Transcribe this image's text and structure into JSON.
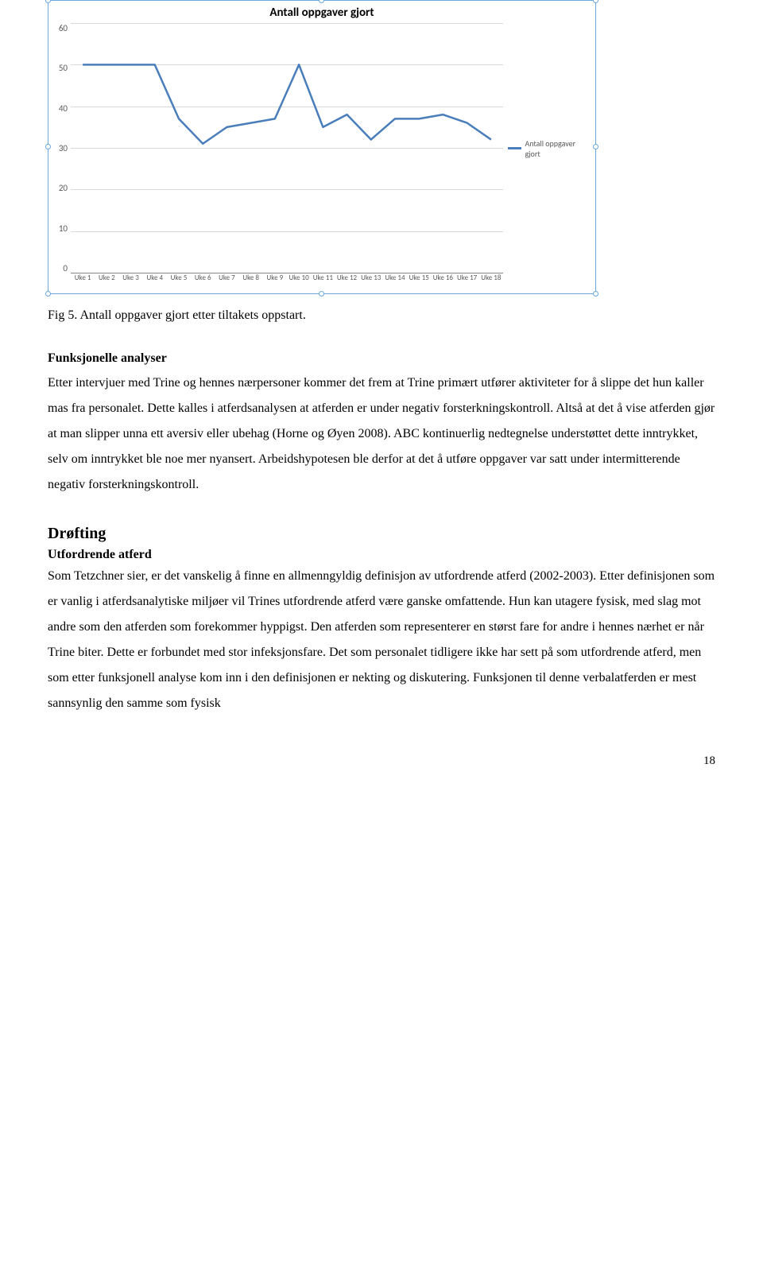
{
  "chart": {
    "type": "line",
    "title": "Antall oppgaver gjort",
    "title_fontsize": 15,
    "title_fontweight": "bold",
    "title_fontfamily": "Calibri",
    "categories": [
      "Uke 1",
      "Uke 2",
      "Uke 3",
      "Uke 4",
      "Uke 5",
      "Uke 6",
      "Uke 7",
      "Uke 8",
      "Uke 9",
      "Uke 10",
      "Uke 11",
      "Uke 12",
      "Uke 13",
      "Uke 14",
      "Uke 15",
      "Uke 16",
      "Uke 17",
      "Uke 18"
    ],
    "values": [
      50,
      50,
      50,
      50,
      37,
      31,
      35,
      36,
      37,
      50,
      35,
      38,
      32,
      37,
      37,
      38,
      36,
      32
    ],
    "line_color": "#4a7ebb",
    "line_width": 2.5,
    "background_color": "#ffffff",
    "border_color": "#6aa8e0",
    "grid_color": "#d9d9d9",
    "axis_text_color": "#595959",
    "ylim": [
      0,
      60
    ],
    "ytick_step": 10,
    "yticks": [
      60,
      50,
      40,
      30,
      20,
      10,
      0
    ],
    "xlabel_fontsize": 9,
    "ylabel_fontsize": 11,
    "legend": {
      "label": "Antall oppgaver gjort",
      "swatch_color": "#4a7ebb",
      "position": "right",
      "fontsize": 10
    },
    "selection_handles": true,
    "handle_color": "#6aa8e0"
  },
  "caption": "Fig 5. Antall oppgaver gjort etter tiltakets oppstart.",
  "section1_heading": "Funksjonelle analyser",
  "section1_body": "Etter intervjuer med Trine og hennes nærpersoner kommer det frem at Trine primært utfører aktiviteter for å slippe det hun kaller mas fra personalet. Dette kalles i atferdsanalysen at atferden er under negativ forsterkningskontroll. Altså at det å vise atferden gjør at man slipper unna ett aversiv eller ubehag (Horne og Øyen 2008). ABC kontinuerlig nedtegnelse understøttet dette inntrykket, selv om inntrykket ble noe mer nyansert. Arbeidshypotesen ble derfor at det å utføre oppgaver var satt under intermitterende negativ forsterkningskontroll.",
  "discussion_heading": "Drøfting",
  "section2_heading": "Utfordrende atferd",
  "section2_body": "Som Tetzchner sier, er det vanskelig å finne en allmenngyldig definisjon av utfordrende atferd (2002-2003). Etter definisjonen som er vanlig i atferdsanalytiske miljøer vil Trines utfordrende atferd være ganske omfattende. Hun kan utagere fysisk, med slag mot andre som den atferden som forekommer hyppigst. Den atferden som representerer en størst fare for andre i hennes nærhet er når Trine biter. Dette er forbundet med stor infeksjonsfare. Det som personalet tidligere ikke har sett på som utfordrende atferd, men som etter funksjonell analyse kom inn i den definisjonen er nekting og diskutering. Funksjonen til denne verbalatferden er mest sannsynlig den samme som fysisk",
  "page_number": "18"
}
